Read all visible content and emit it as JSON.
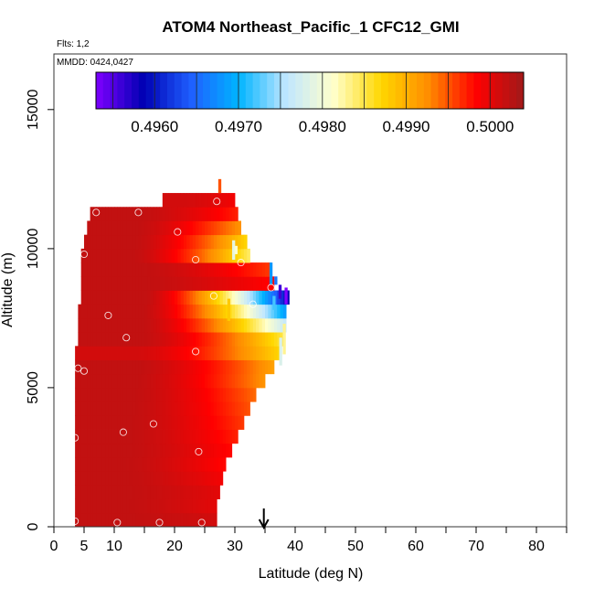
{
  "chart_data": {
    "type": "heatmap",
    "title": "ATOM4 Northeast_Pacific_1 CFC12_GMI",
    "flights_label": "Flts: 1,2",
    "dates_label": "MMDD: 0424,0427",
    "xlabel": "Latitude (deg N)",
    "ylabel": "Altitude (m)",
    "xlim": [
      0,
      85
    ],
    "ylim": [
      0,
      17000
    ],
    "x_ticks": [
      0,
      5,
      10,
      20,
      30,
      40,
      50,
      60,
      70,
      80
    ],
    "y_ticks": [
      0,
      5000,
      10000,
      15000
    ],
    "colorbar": {
      "min": 0.4953,
      "max": 0.5004,
      "tick_values": [
        0.496,
        0.497,
        0.498,
        0.499,
        0.5
      ],
      "tick_labels": [
        "0.4960",
        "0.4970",
        "0.4980",
        "0.4990",
        "0.5000"
      ],
      "colors": [
        "#7f00ff",
        "#0000b3",
        "#1f5fff",
        "#00b4ff",
        "#bfe6ff",
        "#ffffcc",
        "#ffd700",
        "#ff8c00",
        "#ff0000",
        "#a01a1a"
      ]
    },
    "arrow_latitude": 34.8,
    "profiles": [
      {
        "z": 250,
        "lat_min": 3.5,
        "lat_max": 27,
        "v0": 0.5002,
        "v1": 0.5001
      },
      {
        "z": 750,
        "lat_min": 3.5,
        "lat_max": 27,
        "v0": 0.5002,
        "v1": 0.5
      },
      {
        "z": 1250,
        "lat_min": 3.5,
        "lat_max": 27.5,
        "v0": 0.5002,
        "v1": 0.5
      },
      {
        "z": 1750,
        "lat_min": 3.5,
        "lat_max": 28,
        "v0": 0.5002,
        "v1": 0.4999
      },
      {
        "z": 2250,
        "lat_min": 3.5,
        "lat_max": 28.5,
        "v0": 0.5002,
        "v1": 0.4998
      },
      {
        "z": 2750,
        "lat_min": 3.5,
        "lat_max": 29.5,
        "v0": 0.5002,
        "v1": 0.4998
      },
      {
        "z": 3250,
        "lat_min": 3.5,
        "lat_max": 30.5,
        "v0": 0.5002,
        "v1": 0.4997
      },
      {
        "z": 3750,
        "lat_min": 3.5,
        "lat_max": 31.5,
        "v0": 0.5002,
        "v1": 0.4996
      },
      {
        "z": 4250,
        "lat_min": 3.5,
        "lat_max": 32.5,
        "v0": 0.5002,
        "v1": 0.4995
      },
      {
        "z": 4750,
        "lat_min": 3.5,
        "lat_max": 33.5,
        "v0": 0.5002,
        "v1": 0.4994
      },
      {
        "z": 5250,
        "lat_min": 3.5,
        "lat_max": 35,
        "v0": 0.5002,
        "v1": 0.4992
      },
      {
        "z": 5750,
        "lat_min": 3.5,
        "lat_max": 36.5,
        "v0": 0.5002,
        "v1": 0.4991
      },
      {
        "z": 6250,
        "lat_min": 3.5,
        "lat_max": 37.5,
        "v0": 0.5001,
        "v1": 0.4987
      },
      {
        "z": 6750,
        "lat_min": 4,
        "lat_max": 38,
        "v0": 0.5002,
        "v1": 0.4985
      },
      {
        "z": 7250,
        "lat_min": 4,
        "lat_max": 38.5,
        "v0": 0.5002,
        "v1": 0.4976
      },
      {
        "z": 7750,
        "lat_min": 4,
        "lat_max": 38.5,
        "v0": 0.5002,
        "v1": 0.4968
      },
      {
        "z": 8250,
        "lat_min": 4.5,
        "lat_max": 39,
        "v0": 0.5002,
        "v1": 0.4958
      },
      {
        "z": 8750,
        "lat_min": 4.5,
        "lat_max": 36.5,
        "v0": 0.5002,
        "v1": 0.4998
      },
      {
        "z": 9250,
        "lat_min": 4.5,
        "lat_max": 36,
        "v0": 0.5002,
        "v1": 0.4996
      },
      {
        "z": 9750,
        "lat_min": 4.5,
        "lat_max": 32.5,
        "v0": 0.5002,
        "v1": 0.4984
      },
      {
        "z": 10250,
        "lat_min": 5,
        "lat_max": 32,
        "v0": 0.5002,
        "v1": 0.4987
      },
      {
        "z": 10750,
        "lat_min": 5.5,
        "lat_max": 31,
        "v0": 0.5002,
        "v1": 0.4992
      },
      {
        "z": 11250,
        "lat_min": 6,
        "lat_max": 30.5,
        "v0": 0.5002,
        "v1": 0.4997
      },
      {
        "z": 11750,
        "lat_min": 18,
        "lat_max": 30,
        "v0": 0.5001,
        "v1": 0.4999
      }
    ],
    "patches": [
      {
        "lat": 29.8,
        "z0": 9600,
        "z1": 10300,
        "value": 0.4979
      },
      {
        "lat": 30.2,
        "z0": 9800,
        "z1": 10100,
        "value": 0.4981
      },
      {
        "lat": 29.0,
        "z0": 7400,
        "z1": 8200,
        "value": 0.4988
      },
      {
        "lat": 27.5,
        "z0": 12000,
        "z1": 12500,
        "value": 0.4995
      },
      {
        "lat": 36.0,
        "z0": 8700,
        "z1": 9500,
        "value": 0.4968
      },
      {
        "lat": 36.8,
        "z0": 8700,
        "z1": 9000,
        "value": 0.4966
      },
      {
        "lat": 37.5,
        "z0": 8200,
        "z1": 8700,
        "value": 0.4956
      },
      {
        "lat": 38.5,
        "z0": 8000,
        "z1": 8600,
        "value": 0.4953
      },
      {
        "lat": 36.5,
        "z0": 7800,
        "z1": 8300,
        "value": 0.4972
      },
      {
        "lat": 37.6,
        "z0": 5800,
        "z1": 6800,
        "value": 0.4978
      },
      {
        "lat": 38.2,
        "z0": 6200,
        "z1": 7300,
        "value": 0.4983
      }
    ],
    "obs_points": [
      [
        7,
        11300
      ],
      [
        14,
        11300
      ],
      [
        27,
        11700
      ],
      [
        20.5,
        10600
      ],
      [
        5,
        9800
      ],
      [
        23.5,
        9600
      ],
      [
        31,
        9500
      ],
      [
        36,
        8600
      ],
      [
        26.5,
        8300
      ],
      [
        33,
        8000
      ],
      [
        9,
        7600
      ],
      [
        12,
        6800
      ],
      [
        23.5,
        6300
      ],
      [
        4,
        5700
      ],
      [
        5,
        5600
      ],
      [
        16.5,
        3700
      ],
      [
        11.5,
        3400
      ],
      [
        3.5,
        3200
      ],
      [
        24,
        2700
      ],
      [
        3.5,
        200
      ],
      [
        10.5,
        150
      ],
      [
        17.5,
        150
      ],
      [
        24.5,
        150
      ]
    ]
  }
}
